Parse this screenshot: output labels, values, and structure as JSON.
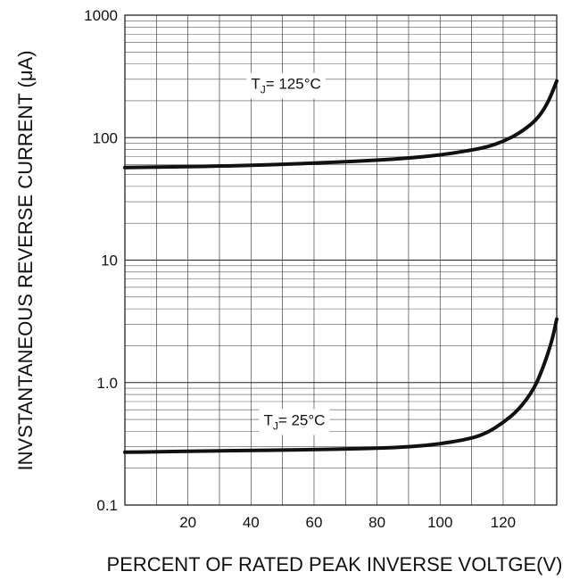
{
  "chart_data": {
    "type": "line",
    "title": "",
    "xlabel": "PERCENT OF RATED PEAK INVERSE VOLTGE(V)",
    "ylabel": "INVSTANTANEOUS REVERSE CURRENT (μA)",
    "xlim": [
      0,
      137
    ],
    "ylim": [
      0.1,
      1000
    ],
    "yscale": "log",
    "grid": true,
    "x_ticks": [
      20,
      40,
      60,
      80,
      100,
      120
    ],
    "x_tick_labels": [
      "20",
      "40",
      "60",
      "80",
      "100",
      "120"
    ],
    "y_ticks": [
      0.1,
      1,
      10,
      100,
      1000
    ],
    "y_tick_labels": [
      "0.1",
      "1.0",
      "10",
      "100",
      "1000"
    ],
    "series": [
      {
        "name": "125°C",
        "label_prefix": "T",
        "label_sub": "J",
        "label_eq": "= ",
        "x": [
          0,
          10,
          20,
          30,
          40,
          50,
          60,
          70,
          80,
          90,
          100,
          110,
          115,
          120,
          125,
          130,
          133,
          135,
          137
        ],
        "y": [
          57,
          57.5,
          58,
          58.5,
          59.5,
          60.5,
          62,
          63.5,
          65.5,
          68,
          72,
          79,
          84,
          93,
          108,
          135,
          170,
          215,
          290
        ]
      },
      {
        "name": "25°C",
        "label_prefix": "T",
        "label_sub": "J",
        "label_eq": "= ",
        "x": [
          0,
          10,
          20,
          30,
          40,
          50,
          60,
          70,
          80,
          90,
          100,
          110,
          115,
          120,
          125,
          130,
          133,
          135,
          136,
          137
        ],
        "y": [
          0.27,
          0.272,
          0.275,
          0.277,
          0.279,
          0.281,
          0.284,
          0.287,
          0.291,
          0.298,
          0.315,
          0.35,
          0.39,
          0.47,
          0.6,
          0.9,
          1.4,
          2.0,
          2.5,
          3.3
        ]
      }
    ]
  }
}
